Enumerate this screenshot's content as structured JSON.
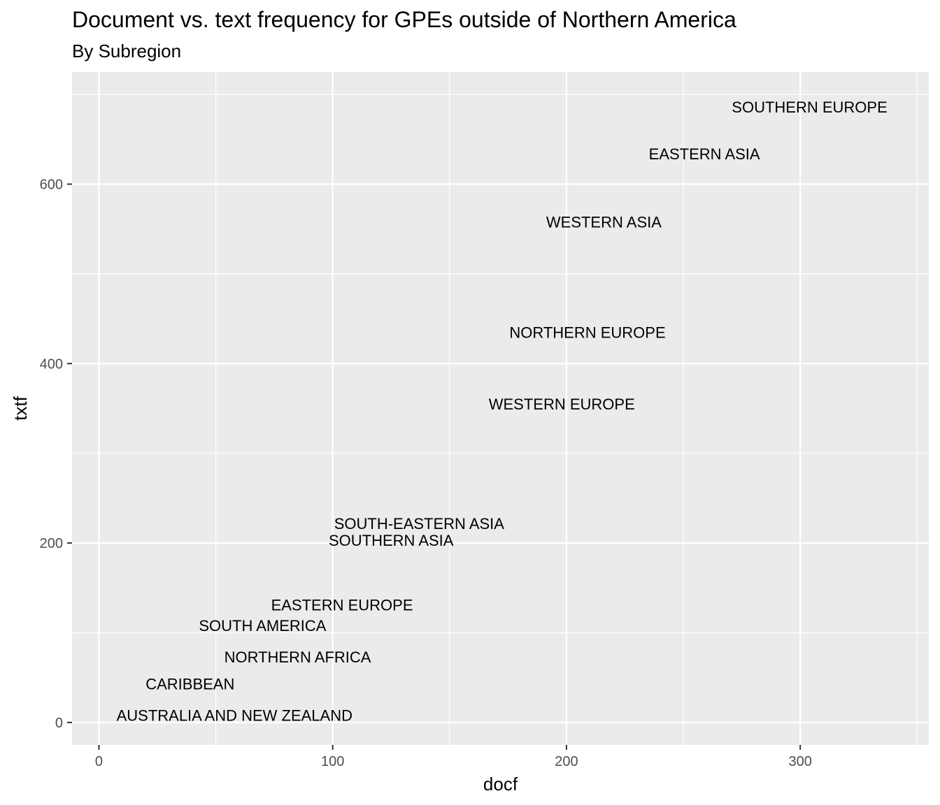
{
  "chart_data": {
    "type": "scatter",
    "title": "Document vs. text frequency for GPEs outside of Northern America",
    "subtitle": "By Subregion",
    "xlabel": "docf",
    "ylabel": "txtf",
    "xlim": [
      -11.5,
      355
    ],
    "ylim": [
      -25,
      725
    ],
    "x_ticks": [
      0,
      100,
      200,
      300
    ],
    "x_tick_labels": [
      "0",
      "100",
      "200",
      "300"
    ],
    "y_ticks": [
      0,
      200,
      400,
      600
    ],
    "y_tick_labels": [
      "0",
      "200",
      "400",
      "600"
    ],
    "grid": true,
    "points": [
      {
        "label": "SOUTHERN EUROPE",
        "x": 304,
        "y": 686
      },
      {
        "label": "EASTERN ASIA",
        "x": 259,
        "y": 634
      },
      {
        "label": "WESTERN ASIA",
        "x": 216,
        "y": 558
      },
      {
        "label": "NORTHERN EUROPE",
        "x": 209,
        "y": 435
      },
      {
        "label": "WESTERN EUROPE",
        "x": 198,
        "y": 355
      },
      {
        "label": "SOUTH-EASTERN ASIA",
        "x": 137,
        "y": 222
      },
      {
        "label": "SOUTHERN ASIA",
        "x": 125,
        "y": 203
      },
      {
        "label": "EASTERN EUROPE",
        "x": 104,
        "y": 131
      },
      {
        "label": "SOUTH AMERICA",
        "x": 70,
        "y": 108
      },
      {
        "label": "NORTHERN AFRICA",
        "x": 85,
        "y": 73
      },
      {
        "label": "CARIBBEAN",
        "x": 39,
        "y": 43
      },
      {
        "label": "AUSTRALIA AND NEW ZEALAND",
        "x": 58,
        "y": 8
      }
    ]
  }
}
